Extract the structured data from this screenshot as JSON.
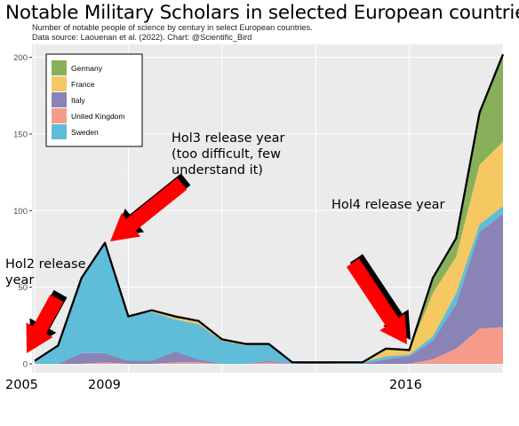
{
  "title": "Notable Military Scholars in selected European countries.",
  "subtitle_lines": [
    "Number of notable people of science by century in select European countries.",
    "Data source: Laouenan et al. (2022). Chart: @Scientific_Bird"
  ],
  "annotations": {
    "hol2": [
      "Hol2 release",
      "year"
    ],
    "hol3": [
      "Hol3 release year",
      "(too difficult, few",
      "understand it)"
    ],
    "hol4": [
      "Hol4 release year"
    ]
  },
  "x_labels": {
    "a": "2005",
    "b": "2009",
    "c": "2016"
  },
  "colors": {
    "Germany": "#88b05a",
    "France": "#f5c862",
    "Italy": "#8a83b6",
    "United Kingdom": "#f59b88",
    "Sweden": "#5fbdd9",
    "panel": "#ebebeb",
    "arrow": "#ff0000"
  },
  "chart_data": {
    "type": "area",
    "stacked": true,
    "title": "Notable Military Scholars in selected European countries.",
    "xlabel": "",
    "ylabel": "",
    "ylim": [
      0,
      205
    ],
    "y_ticks": [
      0,
      50,
      100,
      150,
      200
    ],
    "grid": true,
    "legend_position": "top-left",
    "legend_order": [
      "Germany",
      "France",
      "Italy",
      "United Kingdom",
      "Sweden"
    ],
    "x": [
      2005,
      2006,
      2007,
      2008,
      2009,
      2010,
      2011,
      2012,
      2013,
      2014,
      2015,
      2016,
      2017,
      2018,
      2019,
      2020,
      2021,
      2022,
      2023,
      2024,
      2025
    ],
    "series": [
      {
        "name": "United Kingdom",
        "values": [
          0,
          0,
          0,
          1,
          0,
          0,
          1,
          1,
          0,
          0,
          1,
          0,
          0,
          0,
          0,
          0,
          0,
          3,
          10,
          23,
          24
        ]
      },
      {
        "name": "Italy",
        "values": [
          0,
          0,
          7,
          6,
          2,
          2,
          7,
          2,
          0,
          0,
          1,
          0,
          1,
          0,
          0,
          3,
          5,
          12,
          29,
          63,
          74
        ]
      },
      {
        "name": "Sweden",
        "values": [
          2,
          12,
          49,
          72,
          29,
          32,
          21,
          23,
          15,
          12,
          11,
          1,
          0,
          1,
          1,
          2,
          1,
          3,
          7,
          5,
          5
        ]
      },
      {
        "name": "France",
        "values": [
          0,
          0,
          0,
          0,
          0,
          1,
          1,
          2,
          1,
          1,
          0,
          0,
          0,
          0,
          0,
          4,
          3,
          28,
          24,
          39,
          42
        ]
      },
      {
        "name": "Germany",
        "values": [
          0,
          0,
          0,
          0,
          0,
          0,
          1,
          0,
          0,
          0,
          0,
          0,
          0,
          0,
          0,
          1,
          0,
          10,
          12,
          34,
          57
        ]
      }
    ]
  }
}
